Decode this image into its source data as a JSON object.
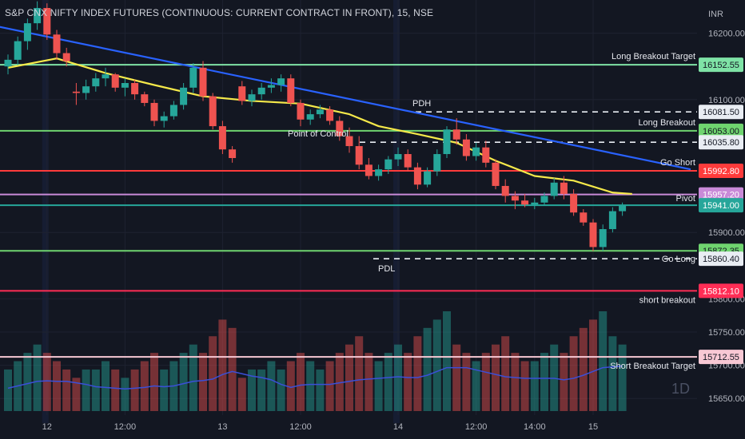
{
  "title": "S&P CNX NIFTY INDEX FUTURES (CONTINUOUS: CURRENT CONTRACT IN FRONT), 15, NSE",
  "currency": "INR",
  "interval_badge": "1D",
  "colors": {
    "background": "#131722",
    "up": "#26a69a",
    "down": "#ef5350",
    "trendline": "#2962ff",
    "ma": "#f5e94a",
    "volume_ma": "#3b4fd9",
    "target": "#7fe3a6",
    "breakout": "#6fd46f",
    "red_level": "#ff3b3b",
    "pivot": "#c98ad8",
    "short_breakout": "#ff2d55",
    "short_target": "#f8c8d4"
  },
  "chart_data": {
    "type": "candlestick",
    "symbol": "S&P CNX NIFTY INDEX FUTURES (CONTINUOUS: CURRENT CONTRACT IN FRONT)",
    "interval": "15",
    "exchange": "NSE",
    "ylim": [
      15625,
      16250
    ],
    "y_ticks": [
      16200,
      16100,
      15900,
      15800,
      15750,
      15700,
      15650
    ],
    "x_ticks": [
      {
        "label": "12",
        "bar": 4
      },
      {
        "label": "12:00",
        "bar": 12
      },
      {
        "label": "13",
        "bar": 22
      },
      {
        "label": "12:00",
        "bar": 30
      },
      {
        "label": "14",
        "bar": 40
      },
      {
        "label": "12:00",
        "bar": 48
      },
      {
        "label": "14:00",
        "bar": 54
      },
      {
        "label": "15",
        "bar": 60
      }
    ],
    "candles": [
      [
        16150,
        16168,
        16138,
        16160
      ],
      [
        16160,
        16195,
        16152,
        16188
      ],
      [
        16188,
        16222,
        16175,
        16215
      ],
      [
        16215,
        16248,
        16205,
        16238
      ],
      [
        16238,
        16245,
        16190,
        16198
      ],
      [
        16198,
        16205,
        16160,
        16170
      ],
      [
        16170,
        16178,
        16150,
        16158
      ],
      [
        16112,
        16125,
        16092,
        16110
      ],
      [
        16110,
        16130,
        16100,
        16120
      ],
      [
        16120,
        16140,
        16112,
        16132
      ],
      [
        16132,
        16148,
        16120,
        16138
      ],
      [
        16138,
        16140,
        16112,
        16118
      ],
      [
        16118,
        16132,
        16105,
        16125
      ],
      [
        16125,
        16130,
        16100,
        16108
      ],
      [
        16108,
        16112,
        16090,
        16095
      ],
      [
        16095,
        16100,
        16060,
        16068
      ],
      [
        16068,
        16082,
        16058,
        16075
      ],
      [
        16075,
        16098,
        16070,
        16092
      ],
      [
        16092,
        16125,
        16085,
        16118
      ],
      [
        16118,
        16155,
        16110,
        16148
      ],
      [
        16148,
        16158,
        16098,
        16105
      ],
      [
        16105,
        16110,
        16055,
        16060
      ],
      [
        16060,
        16068,
        16018,
        16025
      ],
      [
        16025,
        16030,
        16005,
        16012
      ],
      [
        16120,
        16128,
        16092,
        16098
      ],
      [
        16098,
        16115,
        16090,
        16108
      ],
      [
        16108,
        16125,
        16100,
        16118
      ],
      [
        16118,
        16132,
        16110,
        16122
      ],
      [
        16122,
        16138,
        16112,
        16132
      ],
      [
        16132,
        16138,
        16090,
        16095
      ],
      [
        16095,
        16100,
        16060,
        16070
      ],
      [
        16070,
        16085,
        16062,
        16078
      ],
      [
        16078,
        16092,
        16072,
        16085
      ],
      [
        16085,
        16090,
        16062,
        16068
      ],
      [
        16068,
        16075,
        16038,
        16045
      ],
      [
        16045,
        16058,
        16020,
        16030
      ],
      [
        16030,
        16045,
        15995,
        16002
      ],
      [
        16002,
        16012,
        15980,
        15985
      ],
      [
        15985,
        16002,
        15978,
        15995
      ],
      [
        15995,
        16015,
        15988,
        16010
      ],
      [
        16010,
        16028,
        16000,
        16018
      ],
      [
        16018,
        16025,
        15992,
        15998
      ],
      [
        15998,
        16005,
        15965,
        15972
      ],
      [
        15972,
        15998,
        15968,
        15992
      ],
      [
        15992,
        16025,
        15985,
        16018
      ],
      [
        16018,
        16060,
        16012,
        16055
      ],
      [
        16055,
        16072,
        16032,
        16040
      ],
      [
        16040,
        16048,
        16008,
        16015
      ],
      [
        16015,
        16035,
        16008,
        16028
      ],
      [
        16028,
        16038,
        15998,
        16005
      ],
      [
        16005,
        16010,
        15965,
        15970
      ],
      [
        15970,
        15980,
        15945,
        15955
      ],
      [
        15955,
        15962,
        15935,
        15948
      ],
      [
        15948,
        15958,
        15938,
        15942
      ],
      [
        15942,
        15952,
        15935,
        15945
      ],
      [
        15945,
        15960,
        15940,
        15955
      ],
      [
        15955,
        15982,
        15950,
        15975
      ],
      [
        15975,
        15985,
        15950,
        15958
      ],
      [
        15958,
        15965,
        15925,
        15930
      ],
      [
        15930,
        15935,
        15910,
        15915
      ],
      [
        15915,
        15920,
        15872,
        15878
      ],
      [
        15878,
        15912,
        15872,
        15905
      ],
      [
        15905,
        15938,
        15900,
        15932
      ],
      [
        15932,
        15945,
        15925,
        15940
      ]
    ],
    "volume": [
      5,
      6,
      7,
      8,
      7,
      6,
      5,
      4,
      5,
      5,
      6,
      5,
      4,
      5,
      6,
      7,
      5,
      6,
      7,
      8,
      7,
      9,
      11,
      10,
      4,
      5,
      5,
      6,
      5,
      6,
      7,
      6,
      5,
      6,
      7,
      8,
      9,
      7,
      6,
      7,
      8,
      7,
      9,
      10,
      11,
      12,
      8,
      7,
      6,
      7,
      8,
      9,
      7,
      6,
      6,
      7,
      8,
      7,
      9,
      10,
      11,
      12,
      9,
      8
    ],
    "moving_average": [
      [
        0,
        16148
      ],
      [
        5,
        16162
      ],
      [
        10,
        16140
      ],
      [
        15,
        16122
      ],
      [
        20,
        16105
      ],
      [
        25,
        16098
      ],
      [
        30,
        16094
      ],
      [
        35,
        16078
      ],
      [
        38,
        16060
      ],
      [
        42,
        16048
      ],
      [
        46,
        16035
      ],
      [
        50,
        16008
      ],
      [
        54,
        15985
      ],
      [
        58,
        15978
      ],
      [
        62,
        15960
      ],
      [
        64,
        15958
      ]
    ],
    "trendline": {
      "from": [
        -1,
        16210
      ],
      "to": [
        70,
        15995
      ]
    },
    "levels": [
      {
        "label": "Long Breakout Target",
        "value": 16152.55,
        "color": "target",
        "style": "solid"
      },
      {
        "label": "PDH",
        "value": 16081.5,
        "color": "white",
        "style": "dashed"
      },
      {
        "label": "Long Breakout",
        "value": 16053.0,
        "color": "breakout",
        "style": "solid"
      },
      {
        "label": "Point of Control",
        "value": 16035.8,
        "color": "white",
        "style": "dashed"
      },
      {
        "label": "Go Short",
        "value": 15992.8,
        "color": "red_level",
        "style": "solid"
      },
      {
        "label": "",
        "value": 15957.2,
        "color": "pivot",
        "style": "solid"
      },
      {
        "label": "Pivot",
        "value": 15941.0,
        "color": "up",
        "style": "solid"
      },
      {
        "label": "Go Long",
        "value": 15872.35,
        "color": "breakout",
        "style": "solid"
      },
      {
        "label": "PDL",
        "value": 15860.4,
        "color": "white",
        "style": "dashed"
      },
      {
        "label": "short breakout",
        "value": 15812.1,
        "color": "short_breakout",
        "style": "solid"
      },
      {
        "label": "Short  Breakout Target",
        "value": 15712.55,
        "color": "short_target",
        "style": "solid"
      }
    ],
    "price_tags": [
      {
        "text": "16152.55",
        "value": 16152.55,
        "bg": "#7fe3a6",
        "fg": "#131722"
      },
      {
        "text": "16081.50",
        "value": 16081.5,
        "bg": "#e9edf3",
        "fg": "#131722"
      },
      {
        "text": "16053.00",
        "value": 16053.0,
        "bg": "#6fd46f",
        "fg": "#131722"
      },
      {
        "text": "16035.80",
        "value": 16035.8,
        "bg": "#e9edf3",
        "fg": "#131722"
      },
      {
        "text": "15992.80",
        "value": 15992.8,
        "bg": "#ff3b3b",
        "fg": "#ffffff"
      },
      {
        "text": "15957.20",
        "value": 15957.2,
        "bg": "#c98ad8",
        "fg": "#ffffff"
      },
      {
        "text": "15941.00",
        "value": 15941.0,
        "bg": "#26a69a",
        "fg": "#ffffff"
      },
      {
        "text": "15872.35",
        "value": 15872.35,
        "bg": "#6fd46f",
        "fg": "#131722"
      },
      {
        "text": "15860.40",
        "value": 15860.4,
        "bg": "#e9edf3",
        "fg": "#131722"
      },
      {
        "text": "15812.10",
        "value": 15812.1,
        "bg": "#ff2d55",
        "fg": "#ffffff"
      },
      {
        "text": "15712.55",
        "value": 15712.55,
        "bg": "#f8c8d4",
        "fg": "#131722"
      }
    ]
  }
}
